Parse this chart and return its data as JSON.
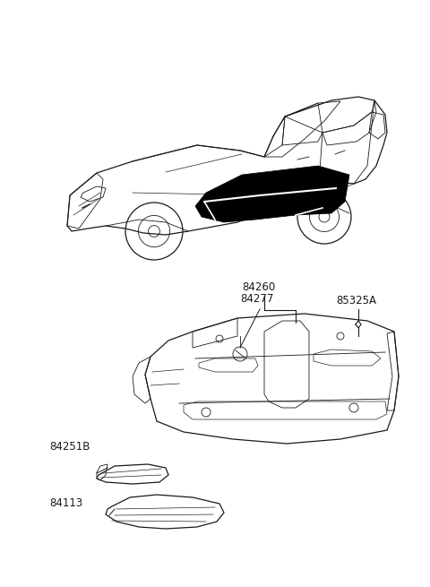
{
  "bg_color": "#ffffff",
  "line_color": "#1a1a1a",
  "fig_width": 4.8,
  "fig_height": 6.55,
  "dpi": 100
}
